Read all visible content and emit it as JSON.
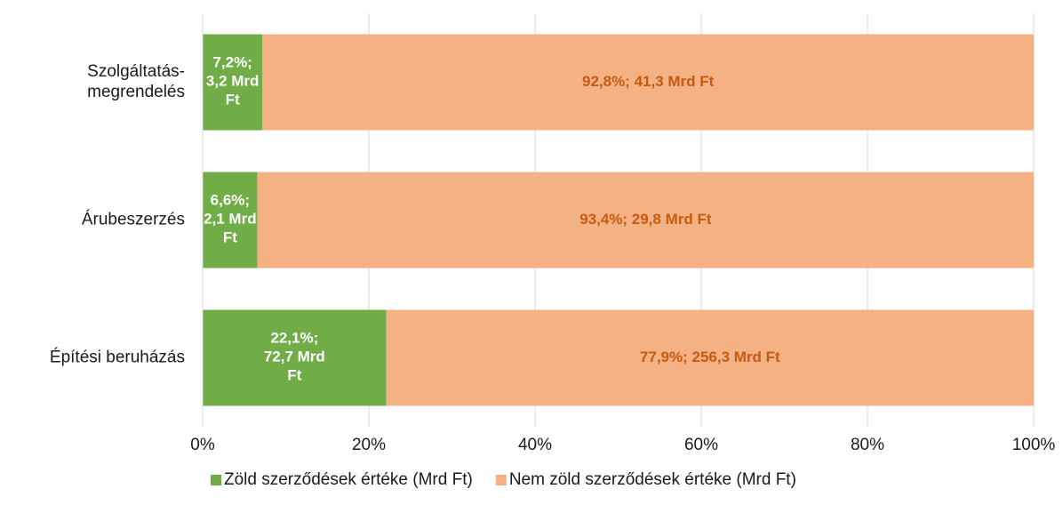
{
  "chart_data": {
    "type": "stacked_bar_horizontal",
    "categories": [
      "Szolgáltatás-megrendelés",
      "Árubeszerzés",
      "Építési beruházás"
    ],
    "series": [
      {
        "name": "Zöld szerződések értéke (Mrd Ft)",
        "color": "#70ad47",
        "label_color": "#ffffff",
        "values": [
          7.2,
          6.6,
          22.1
        ],
        "value_labels": [
          "7,2%; 3,2 Mrd Ft",
          "6,6%; 2,1 Mrd Ft",
          "22,1%; 72,7 Mrd Ft"
        ]
      },
      {
        "name": "Nem zöld szerződések értéke (Mrd Ft)",
        "color": "#f4b183",
        "label_color": "#c55a11",
        "values": [
          92.8,
          93.4,
          77.9
        ],
        "value_labels": [
          "92,8%; 41,3 Mrd Ft",
          "93,4%; 29,8 Mrd Ft",
          "77,9%; 256,3 Mrd Ft"
        ]
      }
    ],
    "xlim": [
      0,
      100
    ],
    "xticks": [
      {
        "value": 0,
        "label": "0%"
      },
      {
        "value": 20,
        "label": "20%"
      },
      {
        "value": 40,
        "label": "40%"
      },
      {
        "value": 60,
        "label": "60%"
      },
      {
        "value": 80,
        "label": "80%"
      },
      {
        "value": 100,
        "label": "100%"
      }
    ],
    "grid": true,
    "legend": "bottom"
  }
}
